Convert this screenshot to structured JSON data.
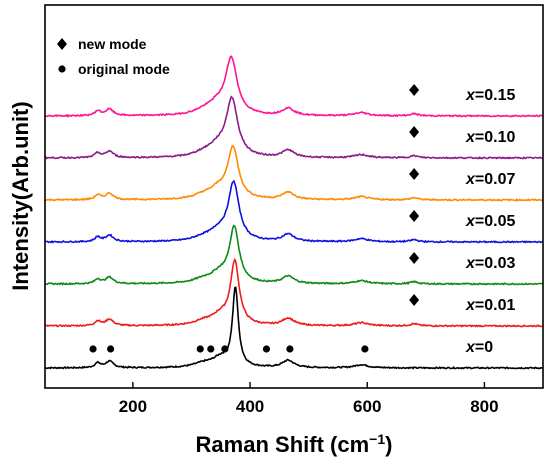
{
  "chart_data": {
    "type": "line",
    "title": "",
    "xlabel": "Raman Shift (cm",
    "xlabel_sup": "−1",
    "xlabel_close": ")",
    "ylabel": "Intensity(Arb.unit)",
    "xlim": [
      50,
      900
    ],
    "xticks": [
      200,
      400,
      600,
      800
    ],
    "legend": {
      "position": "top-left",
      "items": [
        {
          "symbol": "diamond",
          "label": "new mode"
        },
        {
          "symbol": "circle",
          "label": "original mode"
        }
      ]
    },
    "peaks": {
      "main": 375,
      "shoulder": 350,
      "p140": 140,
      "p160": 160,
      "p320": 320,
      "p460": 465,
      "p590": 590,
      "new_mode": 680
    },
    "series": [
      {
        "var": "x",
        "value": "=0",
        "color": "#000000",
        "main_shift": 0,
        "main_amp": 3.0,
        "main_width": 6,
        "has_new_mode": false
      },
      {
        "var": "x",
        "value": "=0.01",
        "color": "#ee1c1c",
        "main_shift": -1,
        "main_amp": 2.4,
        "main_width": 9,
        "has_new_mode": true
      },
      {
        "var": "x",
        "value": "=0.03",
        "color": "#0e8a16",
        "main_shift": -2,
        "main_amp": 2.1,
        "main_width": 10,
        "has_new_mode": true
      },
      {
        "var": "x",
        "value": "=0.05",
        "color": "#1010e0",
        "main_shift": -3,
        "main_amp": 2.2,
        "main_width": 11,
        "has_new_mode": true
      },
      {
        "var": "x",
        "value": "=0.07",
        "color": "#ff8c00",
        "main_shift": -4,
        "main_amp": 1.95,
        "main_width": 11,
        "has_new_mode": true
      },
      {
        "var": "x",
        "value": "=0.10",
        "color": "#8b1a8b",
        "main_shift": -6,
        "main_amp": 2.2,
        "main_width": 12,
        "has_new_mode": true
      },
      {
        "var": "x",
        "value": "=0.15",
        "color": "#ff1493",
        "main_shift": -7,
        "main_amp": 2.15,
        "main_width": 12,
        "has_new_mode": true
      }
    ],
    "original_mode_markers": [
      132,
      162,
      315,
      333,
      357,
      428,
      468,
      596
    ],
    "original_mode_symbol": "circle",
    "new_mode_symbol": "diamond"
  }
}
